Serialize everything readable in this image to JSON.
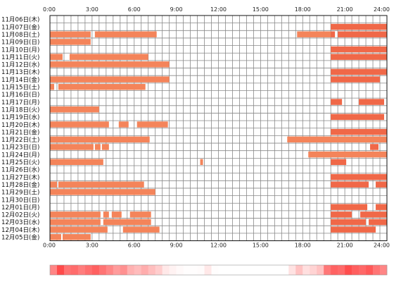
{
  "chart_data": {
    "type": "timeline",
    "title": "",
    "xlabel": "",
    "ylabel": "",
    "x_unit": "hours",
    "xlim": [
      0,
      24
    ],
    "x_ticks": [
      "0:00",
      "3:00",
      "6:00",
      "9:00",
      "12:00",
      "15:00",
      "18:00",
      "21:00",
      "24:00"
    ],
    "grid": true,
    "colors": {
      "bar": "#f4845a",
      "bar_strong": "#f06848",
      "grid": "#888888",
      "frame": "#111111"
    },
    "rows": [
      {
        "label": "11月06日(木)",
        "segments": []
      },
      {
        "label": "11月07日(金)",
        "segments": [
          [
            20.0,
            24.0
          ]
        ]
      },
      {
        "label": "11月08日(土)",
        "segments": [
          [
            0.0,
            2.9
          ],
          [
            3.2,
            7.6
          ],
          [
            17.6,
            20.0
          ],
          [
            20.0,
            20.3
          ],
          [
            20.5,
            24.0
          ]
        ]
      },
      {
        "label": "11月09日(日)",
        "segments": [
          [
            0.0,
            2.9
          ]
        ]
      },
      {
        "label": "11月10日(月)",
        "segments": [
          [
            20.0,
            24.0
          ]
        ]
      },
      {
        "label": "11月11日(火)",
        "segments": [
          [
            0.0,
            0.9
          ],
          [
            1.4,
            7.0
          ],
          [
            20.0,
            24.0
          ]
        ]
      },
      {
        "label": "11月12日(水)",
        "segments": [
          [
            0.0,
            8.5
          ]
        ]
      },
      {
        "label": "11月13日(木)",
        "segments": [
          [
            20.0,
            24.0
          ]
        ]
      },
      {
        "label": "11月14日(金)",
        "segments": [
          [
            0.0,
            8.5
          ],
          [
            20.0,
            23.5
          ]
        ]
      },
      {
        "label": "11月15日(土)",
        "segments": [
          [
            0.0,
            0.3
          ],
          [
            0.6,
            6.8
          ]
        ]
      },
      {
        "label": "11月16日(日)",
        "segments": []
      },
      {
        "label": "11月17日(月)",
        "segments": [
          [
            20.0,
            20.8
          ],
          [
            22.0,
            23.8
          ]
        ]
      },
      {
        "label": "11月18日(火)",
        "segments": [
          [
            0.0,
            3.5
          ]
        ]
      },
      {
        "label": "11月19日(水)",
        "segments": [
          [
            20.0,
            23.8
          ]
        ]
      },
      {
        "label": "11月20日(木)",
        "segments": [
          [
            0.0,
            4.2
          ],
          [
            4.9,
            5.6
          ],
          [
            6.2,
            8.4
          ]
        ]
      },
      {
        "label": "11月21日(金)",
        "segments": [
          [
            20.0,
            24.0
          ]
        ]
      },
      {
        "label": "11月22日(土)",
        "segments": [
          [
            0.0,
            7.1
          ],
          [
            16.9,
            24.0
          ]
        ]
      },
      {
        "label": "11月23日(日)",
        "segments": [
          [
            0.0,
            3.1
          ],
          [
            3.2,
            3.6
          ],
          [
            3.7,
            4.2
          ],
          [
            22.8,
            23.4
          ]
        ]
      },
      {
        "label": "11月24日(月)",
        "segments": [
          [
            18.4,
            24.0
          ]
        ]
      },
      {
        "label": "11月25日(火)",
        "segments": [
          [
            0.0,
            3.8
          ],
          [
            10.7,
            10.9
          ],
          [
            20.0,
            21.1
          ]
        ]
      },
      {
        "label": "11月26日(水)",
        "segments": []
      },
      {
        "label": "11月27日(木)",
        "segments": [
          [
            20.0,
            24.0
          ]
        ]
      },
      {
        "label": "11月28日(金)",
        "segments": [
          [
            0.0,
            0.5
          ],
          [
            0.6,
            6.7
          ],
          [
            20.0,
            22.7
          ],
          [
            23.2,
            24.0
          ]
        ]
      },
      {
        "label": "11月29日(土)",
        "segments": [
          [
            0.0,
            7.5
          ]
        ]
      },
      {
        "label": "11月30日(日)",
        "segments": []
      },
      {
        "label": "12月01日(月)",
        "segments": [
          [
            20.0,
            22.6
          ],
          [
            23.2,
            24.0
          ]
        ]
      },
      {
        "label": "12月02日(火)",
        "segments": [
          [
            0.0,
            3.6
          ],
          [
            3.8,
            4.2
          ],
          [
            4.4,
            5.1
          ],
          [
            5.7,
            7.2
          ],
          [
            20.0,
            21.5
          ],
          [
            22.1,
            24.0
          ]
        ]
      },
      {
        "label": "12月03日(水)",
        "segments": [
          [
            0.0,
            3.6
          ],
          [
            3.8,
            7.2
          ],
          [
            20.0,
            22.5
          ],
          [
            22.7,
            24.0
          ]
        ]
      },
      {
        "label": "12月04日(木)",
        "segments": [
          [
            0.0,
            4.1
          ],
          [
            5.2,
            7.8
          ],
          [
            20.0,
            23.2
          ]
        ]
      },
      {
        "label": "12月05日(金)",
        "segments": [
          [
            0.0,
            0.8
          ],
          [
            0.9,
            2.9
          ]
        ]
      }
    ],
    "density_bar": [
      0.64,
      0.95,
      0.74,
      0.77,
      0.68,
      0.76,
      0.83,
      0.73,
      0.63,
      0.52,
      0.58,
      0.41,
      0.35,
      0.43,
      0.34,
      0.26,
      0.12,
      0.07,
      0.03,
      0.01,
      0.01,
      0.02,
      0.12,
      0.01,
      0.0,
      0.0,
      0.0,
      0.0,
      0.0,
      0.0,
      0.0,
      0.0,
      0.0,
      0.0,
      0.15,
      0.32,
      0.17,
      0.23,
      0.32,
      0.71,
      0.82,
      0.78,
      0.93,
      0.84,
      0.79,
      0.87,
      0.72,
      0.64
    ]
  }
}
